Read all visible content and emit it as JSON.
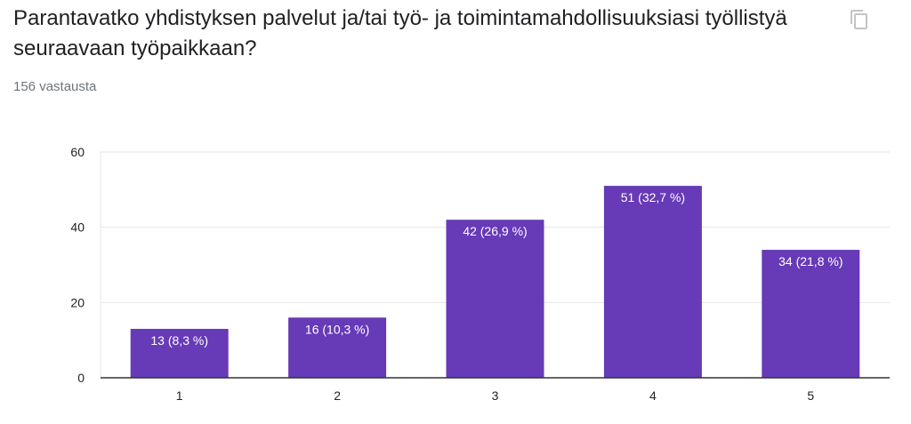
{
  "header": {
    "title": "Parantavatko yhdistyksen palvelut ja/tai työ- ja toimintamahdollisuuksiasi työllistyä seuraavaan työpaikkaan?",
    "response_count": "156 vastausta",
    "copy_icon": "copy-icon"
  },
  "colors": {
    "bar": "#673ab7",
    "grid": "#e6e6e6",
    "axis": "#333333",
    "tick_text": "#222222",
    "label_text": "#ffffff"
  },
  "chart_data": {
    "type": "bar",
    "categories": [
      "1",
      "2",
      "3",
      "4",
      "5"
    ],
    "values": [
      13,
      16,
      42,
      51,
      34
    ],
    "data_labels": [
      "13 (8,3 %)",
      "16 (10,3 %)",
      "42 (26,9 %)",
      "51 (32,7 %)",
      "34 (21,8 %)"
    ],
    "yticks": [
      0,
      20,
      40,
      60
    ],
    "ylim": [
      0,
      60
    ],
    "grid": true,
    "legend": "none"
  }
}
